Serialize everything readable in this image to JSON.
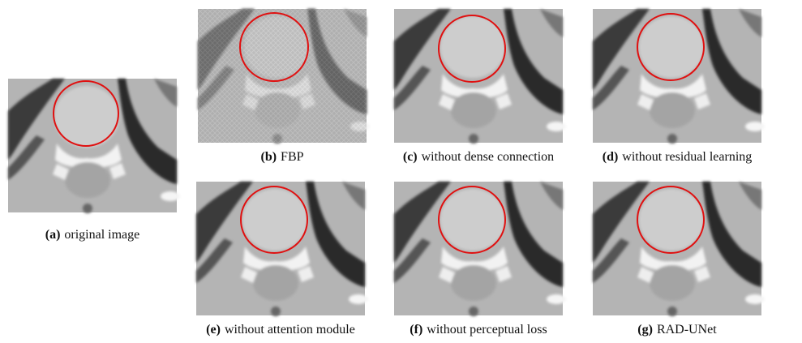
{
  "panels": [
    {
      "label": "(a)",
      "caption": "original image"
    },
    {
      "label": "(b)",
      "caption": "FBP"
    },
    {
      "label": "(c)",
      "caption": "without dense connection"
    },
    {
      "label": "(d)",
      "caption": "without residual learning"
    },
    {
      "label": "(e)",
      "caption": "without attention module"
    },
    {
      "label": "(f)",
      "caption": "without perceptual loss"
    },
    {
      "label": "(g)",
      "caption": "RAD-UNet"
    }
  ]
}
